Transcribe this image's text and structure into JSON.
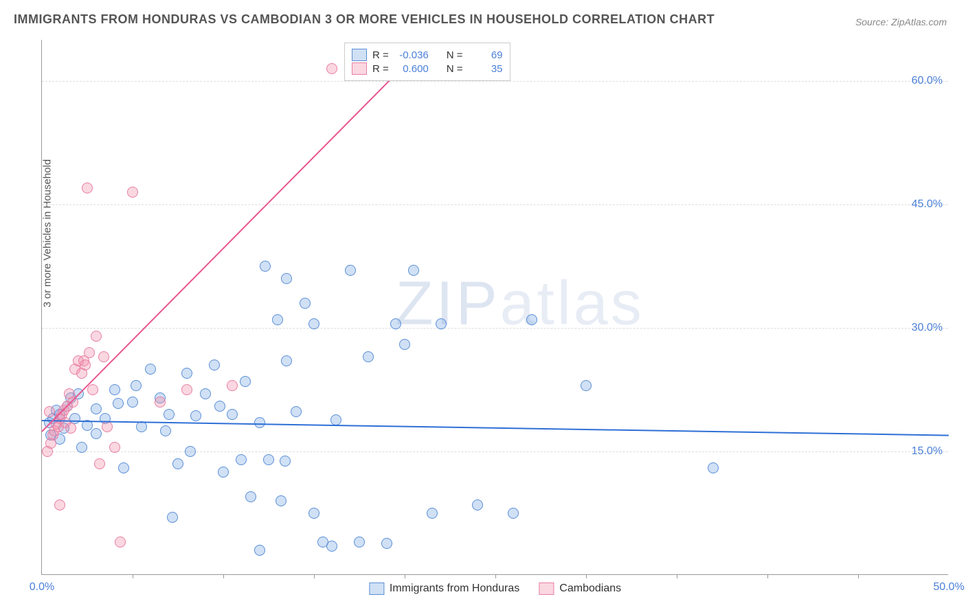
{
  "title": "IMMIGRANTS FROM HONDURAS VS CAMBODIAN 3 OR MORE VEHICLES IN HOUSEHOLD CORRELATION CHART",
  "source": "Source: ZipAtlas.com",
  "watermark": "ZIPatlas",
  "ylabel": "3 or more Vehicles in Household",
  "chart": {
    "type": "scatter",
    "xlim": [
      0,
      50
    ],
    "ylim": [
      0,
      65
    ],
    "x_ticks": [
      0,
      50
    ],
    "x_tick_labels": [
      "0.0%",
      "50.0%"
    ],
    "x_minor_ticks": [
      5,
      10,
      15,
      20,
      25,
      30,
      35,
      40,
      45
    ],
    "y_gridlines": [
      15,
      30,
      45,
      60
    ],
    "y_tick_labels": [
      "15.0%",
      "30.0%",
      "45.0%",
      "60.0%"
    ],
    "grid_color": "#dddddd",
    "axis_color": "#999999",
    "background_color": "#ffffff",
    "marker_radius": 8,
    "marker_stroke_width": 1.5,
    "trend_line_width": 2,
    "series": [
      {
        "name": "Immigrants from Honduras",
        "fill": "rgba(120,165,225,0.35)",
        "stroke": "#5b8fd6",
        "trend_color": "#2e6fd6",
        "R": "-0.036",
        "N": "69",
        "trend": {
          "x1": 0,
          "y1": 18.8,
          "x2": 50,
          "y2": 17.0
        },
        "points": [
          [
            0.4,
            18.5
          ],
          [
            0.6,
            19.0
          ],
          [
            0.8,
            20.0
          ],
          [
            1.0,
            19.5
          ],
          [
            1.2,
            17.8
          ],
          [
            1.4,
            20.5
          ],
          [
            1.6,
            21.5
          ],
          [
            1.8,
            19.0
          ],
          [
            2.0,
            22.0
          ],
          [
            2.5,
            18.2
          ],
          [
            3.0,
            20.2
          ],
          [
            3.5,
            19.0
          ],
          [
            4.0,
            22.5
          ],
          [
            4.5,
            13.0
          ],
          [
            5.0,
            21.0
          ],
          [
            5.2,
            23.0
          ],
          [
            5.5,
            18.0
          ],
          [
            6.0,
            25.0
          ],
          [
            6.5,
            21.5
          ],
          [
            7.0,
            19.5
          ],
          [
            7.2,
            7.0
          ],
          [
            7.5,
            13.5
          ],
          [
            8.0,
            24.5
          ],
          [
            8.5,
            19.3
          ],
          [
            9.0,
            22.0
          ],
          [
            9.5,
            25.5
          ],
          [
            10.0,
            12.5
          ],
          [
            10.5,
            19.5
          ],
          [
            11.0,
            14.0
          ],
          [
            11.5,
            9.5
          ],
          [
            12.0,
            18.5
          ],
          [
            12.0,
            3.0
          ],
          [
            12.3,
            37.5
          ],
          [
            12.5,
            14.0
          ],
          [
            13.0,
            31.0
          ],
          [
            13.2,
            9.0
          ],
          [
            13.4,
            13.8
          ],
          [
            13.5,
            36.0
          ],
          [
            13.5,
            26.0
          ],
          [
            14.0,
            19.8
          ],
          [
            14.5,
            33.0
          ],
          [
            15.0,
            7.5
          ],
          [
            15.0,
            30.5
          ],
          [
            15.5,
            4.0
          ],
          [
            16.0,
            3.5
          ],
          [
            16.2,
            18.8
          ],
          [
            17.0,
            37.0
          ],
          [
            17.5,
            4.0
          ],
          [
            18.0,
            26.5
          ],
          [
            19.0,
            3.8
          ],
          [
            19.5,
            30.5
          ],
          [
            20.0,
            28.0
          ],
          [
            20.5,
            37.0
          ],
          [
            21.5,
            7.5
          ],
          [
            22.0,
            30.5
          ],
          [
            24.0,
            8.5
          ],
          [
            26.0,
            7.5
          ],
          [
            27.0,
            31.0
          ],
          [
            30.0,
            23.0
          ],
          [
            37.0,
            13.0
          ],
          [
            0.5,
            17.0
          ],
          [
            1.0,
            16.5
          ],
          [
            2.2,
            15.5
          ],
          [
            3.0,
            17.2
          ],
          [
            4.2,
            20.8
          ],
          [
            6.8,
            17.5
          ],
          [
            8.2,
            15.0
          ],
          [
            9.8,
            20.5
          ],
          [
            11.2,
            23.5
          ]
        ]
      },
      {
        "name": "Cambodians",
        "fill": "rgba(240,140,170,0.35)",
        "stroke": "#e87fa4",
        "trend_color": "#e85590",
        "R": "0.600",
        "N": "35",
        "trend": {
          "x1": 0,
          "y1": 17.5,
          "x2": 20,
          "y2": 62.0
        },
        "points": [
          [
            0.3,
            15.0
          ],
          [
            0.5,
            16.0
          ],
          [
            0.6,
            17.0
          ],
          [
            0.7,
            17.5
          ],
          [
            0.8,
            18.3
          ],
          [
            0.9,
            18.0
          ],
          [
            1.0,
            19.0
          ],
          [
            1.1,
            19.5
          ],
          [
            1.2,
            20.0
          ],
          [
            1.3,
            18.5
          ],
          [
            1.4,
            20.5
          ],
          [
            1.5,
            22.0
          ],
          [
            1.6,
            17.8
          ],
          [
            1.7,
            21.0
          ],
          [
            1.8,
            25.0
          ],
          [
            2.0,
            26.0
          ],
          [
            2.2,
            24.5
          ],
          [
            2.3,
            26.0
          ],
          [
            2.4,
            25.5
          ],
          [
            2.6,
            27.0
          ],
          [
            2.8,
            22.5
          ],
          [
            3.0,
            29.0
          ],
          [
            3.2,
            13.5
          ],
          [
            3.4,
            26.5
          ],
          [
            3.6,
            18.0
          ],
          [
            4.0,
            15.5
          ],
          [
            4.3,
            4.0
          ],
          [
            5.0,
            46.5
          ],
          [
            6.5,
            21.0
          ],
          [
            8.0,
            22.5
          ],
          [
            10.5,
            23.0
          ],
          [
            1.0,
            8.5
          ],
          [
            2.5,
            47.0
          ],
          [
            16.0,
            61.5
          ],
          [
            0.4,
            19.8
          ]
        ]
      }
    ]
  },
  "legend_top": {
    "rows": [
      {
        "swatch_fill": "rgba(120,165,225,0.35)",
        "swatch_stroke": "#5b8fd6",
        "r_label": "R =",
        "r": " -0.036",
        "n_label": "N =",
        "n": "69"
      },
      {
        "swatch_fill": "rgba(240,140,170,0.35)",
        "swatch_stroke": "#e87fa4",
        "r_label": "R =",
        "r": " 0.600",
        "n_label": "N =",
        "n": "35"
      }
    ]
  },
  "legend_bottom": [
    {
      "swatch_fill": "rgba(120,165,225,0.35)",
      "swatch_stroke": "#5b8fd6",
      "label": "Immigrants from Honduras"
    },
    {
      "swatch_fill": "rgba(240,140,170,0.35)",
      "swatch_stroke": "#e87fa4",
      "label": "Cambodians"
    }
  ]
}
